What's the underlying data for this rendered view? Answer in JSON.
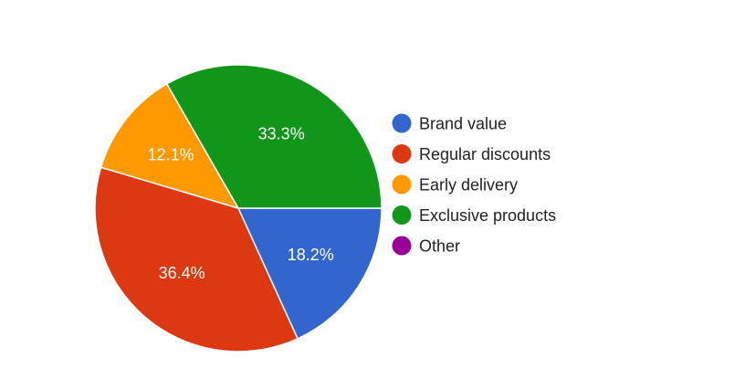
{
  "chart_data": {
    "type": "pie",
    "title": "",
    "legend_position": "right",
    "slices": [
      {
        "label": "Brand value",
        "value": 18.2,
        "display": "18.2%",
        "color": "#3366cc"
      },
      {
        "label": "Regular discounts",
        "value": 36.4,
        "display": "36.4%",
        "color": "#dc3912"
      },
      {
        "label": "Early delivery",
        "value": 12.1,
        "display": "12.1%",
        "color": "#ff9900"
      },
      {
        "label": "Exclusive products",
        "value": 33.3,
        "display": "33.3%",
        "color": "#109618"
      },
      {
        "label": "Other",
        "value": 0,
        "display": "",
        "color": "#990099"
      }
    ]
  }
}
